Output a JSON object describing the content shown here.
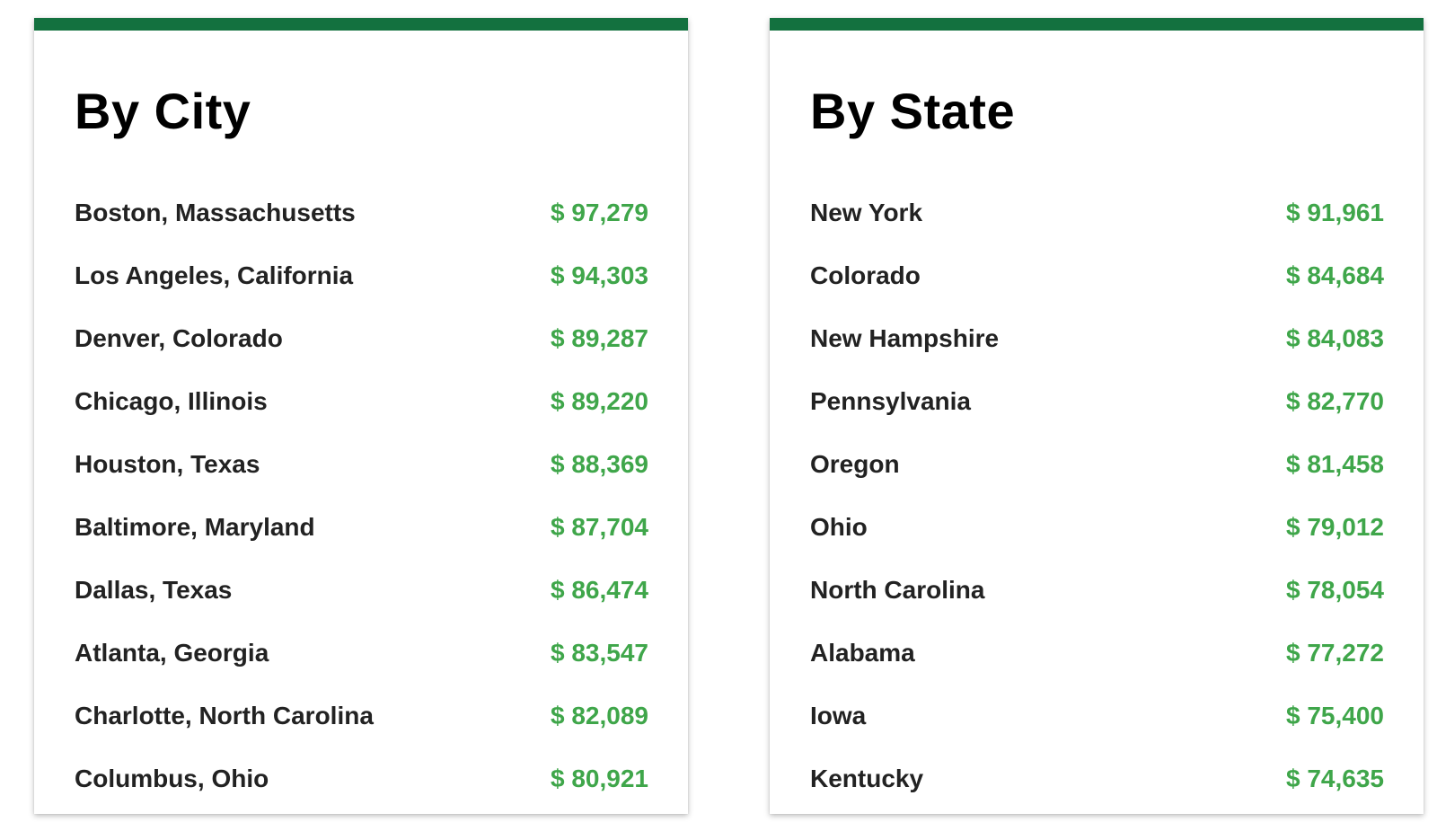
{
  "colors": {
    "accent_bar": "#13713f",
    "value_text": "#3fa64a",
    "label_text": "#222222"
  },
  "city": {
    "title": "By City",
    "rows": [
      {
        "label": "Boston, Massachusetts",
        "value": "$ 97,279"
      },
      {
        "label": "Los Angeles, California",
        "value": "$ 94,303"
      },
      {
        "label": "Denver, Colorado",
        "value": "$ 89,287"
      },
      {
        "label": "Chicago, Illinois",
        "value": "$ 89,220"
      },
      {
        "label": "Houston, Texas",
        "value": "$ 88,369"
      },
      {
        "label": "Baltimore, Maryland",
        "value": "$ 87,704"
      },
      {
        "label": "Dallas, Texas",
        "value": "$ 86,474"
      },
      {
        "label": "Atlanta, Georgia",
        "value": "$ 83,547"
      },
      {
        "label": "Charlotte, North Carolina",
        "value": "$ 82,089"
      },
      {
        "label": "Columbus, Ohio",
        "value": "$ 80,921"
      }
    ]
  },
  "state": {
    "title": "By State",
    "rows": [
      {
        "label": "New York",
        "value": "$ 91,961"
      },
      {
        "label": "Colorado",
        "value": "$ 84,684"
      },
      {
        "label": "New Hampshire",
        "value": "$ 84,083"
      },
      {
        "label": "Pennsylvania",
        "value": "$ 82,770"
      },
      {
        "label": "Oregon",
        "value": "$ 81,458"
      },
      {
        "label": "Ohio",
        "value": "$ 79,012"
      },
      {
        "label": "North Carolina",
        "value": "$ 78,054"
      },
      {
        "label": "Alabama",
        "value": "$ 77,272"
      },
      {
        "label": "Iowa",
        "value": "$ 75,400"
      },
      {
        "label": "Kentucky",
        "value": "$ 74,635"
      }
    ]
  }
}
